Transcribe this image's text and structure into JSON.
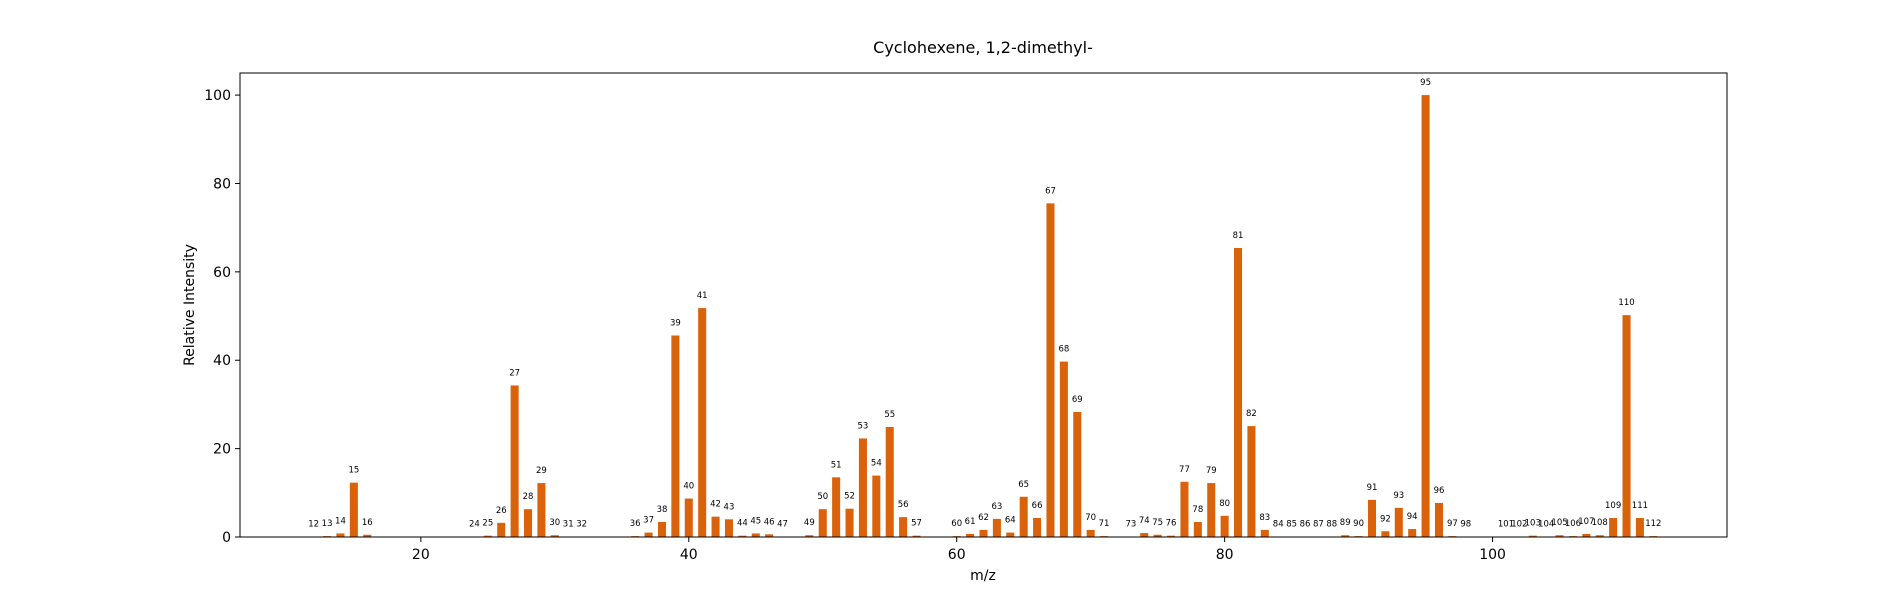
{
  "chart_data": {
    "type": "bar",
    "title": "Cyclohexene, 1,2-dimethyl-",
    "xlabel": "m/z",
    "ylabel": "Relative Intensity",
    "xlim": [
      6.5,
      117.5
    ],
    "ylim": [
      0,
      105
    ],
    "xticks": [
      20,
      40,
      60,
      80,
      100
    ],
    "yticks": [
      0,
      20,
      40,
      60,
      80,
      100
    ],
    "grid": false,
    "legend": "none",
    "bar_color": "#d9620b",
    "x": [
      12,
      13,
      14,
      15,
      16,
      24,
      25,
      26,
      27,
      28,
      29,
      30,
      31,
      32,
      36,
      37,
      38,
      39,
      40,
      41,
      42,
      43,
      44,
      45,
      46,
      47,
      49,
      50,
      51,
      52,
      53,
      54,
      55,
      56,
      57,
      60,
      61,
      62,
      63,
      64,
      65,
      66,
      67,
      68,
      69,
      70,
      71,
      73,
      74,
      75,
      76,
      77,
      78,
      79,
      80,
      81,
      82,
      83,
      84,
      85,
      86,
      87,
      88,
      89,
      90,
      91,
      92,
      93,
      94,
      95,
      96,
      97,
      98,
      101,
      102,
      103,
      104,
      105,
      106,
      107,
      108,
      109,
      110,
      111,
      112
    ],
    "values": [
      0.1,
      0.2,
      0.8,
      12.3,
      0.5,
      0.1,
      0.3,
      3.2,
      34.3,
      6.3,
      12.2,
      0.4,
      0.1,
      0.1,
      0.2,
      1.0,
      3.4,
      45.6,
      8.7,
      51.8,
      4.6,
      4.0,
      0.3,
      0.8,
      0.6,
      0.1,
      0.4,
      6.3,
      13.5,
      6.4,
      22.3,
      13.9,
      24.9,
      4.5,
      0.3,
      0.2,
      0.7,
      1.6,
      4.1,
      1.0,
      9.1,
      4.3,
      75.5,
      39.7,
      28.3,
      1.6,
      0.2,
      0.1,
      0.9,
      0.5,
      0.3,
      12.5,
      3.4,
      12.2,
      4.8,
      65.4,
      25.1,
      1.6,
      0.1,
      0.1,
      0.1,
      0.1,
      0.1,
      0.4,
      0.2,
      8.4,
      1.3,
      6.6,
      1.8,
      100.0,
      7.7,
      0.2,
      0.1,
      0.1,
      0.1,
      0.3,
      0.1,
      0.4,
      0.2,
      0.7,
      0.4,
      4.3,
      50.2,
      4.3,
      0.2
    ]
  }
}
